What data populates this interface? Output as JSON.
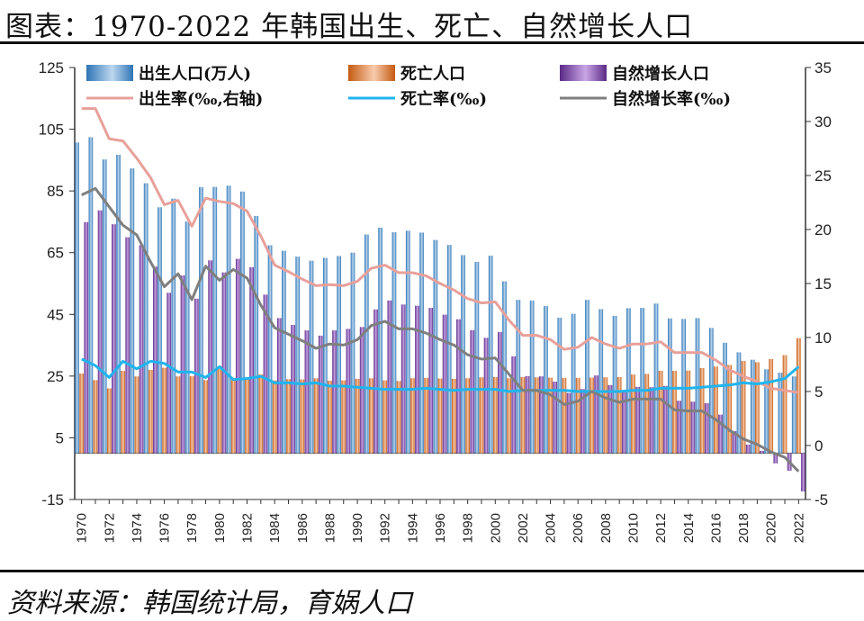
{
  "header": {
    "title": "图表：1970-2022 年韩国出生、死亡、自然增长人口"
  },
  "footer": {
    "source": "资料来源：韩国统计局，育娲人口"
  },
  "colors": {
    "births": "#5b9bd5",
    "deaths": "#ed7d31",
    "natural": "#7030a0",
    "birth_rate": "#e8a09a",
    "death_rate": "#1fb4ee",
    "natural_rate": "#7f7f7f"
  },
  "chart_data": {
    "type": "bar+line",
    "title": "1970-2022 年韩国出生、死亡、自然增长人口",
    "x_label": "",
    "years": [
      1970,
      1971,
      1972,
      1973,
      1974,
      1975,
      1976,
      1977,
      1978,
      1979,
      1980,
      1981,
      1982,
      1983,
      1984,
      1985,
      1986,
      1987,
      1988,
      1989,
      1990,
      1991,
      1992,
      1993,
      1994,
      1995,
      1996,
      1997,
      1998,
      1999,
      2000,
      2001,
      2002,
      2003,
      2004,
      2005,
      2006,
      2007,
      2008,
      2009,
      2010,
      2011,
      2012,
      2013,
      2014,
      2015,
      2016,
      2017,
      2018,
      2019,
      2020,
      2021,
      2022
    ],
    "x_tick_labels": [
      "1970",
      "1972",
      "1974",
      "1976",
      "1978",
      "1980",
      "1982",
      "1984",
      "1986",
      "1988",
      "1990",
      "1992",
      "1994",
      "1996",
      "1998",
      "2000",
      "2002",
      "2004",
      "2006",
      "2008",
      "2010",
      "2012",
      "2014",
      "2016",
      "2018",
      "2020",
      "2022"
    ],
    "left_axis": {
      "label": "万人",
      "min": -15,
      "max": 125,
      "ticks": [
        125,
        105,
        85,
        65,
        45,
        25,
        5,
        -15
      ]
    },
    "right_axis": {
      "label": "‰",
      "min": -5,
      "max": 35,
      "ticks": [
        35,
        30,
        25,
        20,
        15,
        10,
        5,
        0,
        -5
      ]
    },
    "bar_series": [
      {
        "name": "出生人口(万人)",
        "color_key": "births",
        "values": [
          100.7,
          102.4,
          95.2,
          96.7,
          92.3,
          87.5,
          79.7,
          82.5,
          75.1,
          86.2,
          86.3,
          86.7,
          84.8,
          76.9,
          67.4,
          65.6,
          63.7,
          62.4,
          63.3,
          63.9,
          65.0,
          70.9,
          73.1,
          71.6,
          72.1,
          71.5,
          69.1,
          67.5,
          64.2,
          62.0,
          64.0,
          55.7,
          49.7,
          49.5,
          47.7,
          43.9,
          45.2,
          49.7,
          46.7,
          44.5,
          47.0,
          47.1,
          48.5,
          43.7,
          43.5,
          43.8,
          40.6,
          35.8,
          32.7,
          30.3,
          27.2,
          26.1,
          24.9
        ]
      },
      {
        "name": "死亡人口",
        "color_key": "deaths",
        "values": [
          25.8,
          23.7,
          21.0,
          26.7,
          24.9,
          27.0,
          27.7,
          24.9,
          25.0,
          23.7,
          27.7,
          23.7,
          24.5,
          25.5,
          23.6,
          24.0,
          23.9,
          24.3,
          23.5,
          23.6,
          24.1,
          24.3,
          23.6,
          23.4,
          24.3,
          24.4,
          24.2,
          24.1,
          24.3,
          24.6,
          24.7,
          24.3,
          24.7,
          24.6,
          24.5,
          24.4,
          24.4,
          24.5,
          24.6,
          24.7,
          25.5,
          25.7,
          26.7,
          26.7,
          26.8,
          27.6,
          28.1,
          28.6,
          29.9,
          29.5,
          30.5,
          31.8,
          37.3
        ]
      },
      {
        "name": "自然增长人口",
        "color_key": "natural",
        "values": [
          74.9,
          78.7,
          74.2,
          70.0,
          67.4,
          60.5,
          52.0,
          57.6,
          50.1,
          62.5,
          58.6,
          63.0,
          60.3,
          51.4,
          43.8,
          41.6,
          39.8,
          38.1,
          39.8,
          40.3,
          40.9,
          46.6,
          49.5,
          48.2,
          47.8,
          47.1,
          44.9,
          43.4,
          39.9,
          37.4,
          39.3,
          31.4,
          25.0,
          24.9,
          23.2,
          19.5,
          20.8,
          25.2,
          22.1,
          19.8,
          21.5,
          21.4,
          21.8,
          17.0,
          16.7,
          16.2,
          12.5,
          7.2,
          2.8,
          0.8,
          -3.3,
          -5.7,
          -12.4
        ]
      }
    ],
    "line_series": [
      {
        "name": "出生率(‰,右轴)",
        "color_key": "birth_rate",
        "values": [
          31.2,
          31.2,
          28.4,
          28.2,
          26.6,
          24.8,
          22.3,
          22.7,
          20.3,
          22.9,
          22.6,
          22.4,
          21.7,
          19.4,
          16.7,
          16.1,
          15.4,
          14.8,
          14.9,
          14.8,
          15.2,
          16.4,
          16.7,
          16.0,
          16.0,
          15.7,
          15.0,
          14.4,
          13.6,
          13.2,
          13.3,
          11.6,
          10.2,
          10.2,
          9.8,
          8.9,
          9.1,
          10.0,
          9.4,
          9.0,
          9.4,
          9.4,
          9.6,
          8.6,
          8.6,
          8.6,
          7.9,
          7.0,
          6.4,
          5.9,
          5.3,
          5.1,
          4.9
        ]
      },
      {
        "name": "死亡率(‰)",
        "color_key": "death_rate",
        "values": [
          8.0,
          7.4,
          6.3,
          7.8,
          7.1,
          7.8,
          7.6,
          6.8,
          6.8,
          6.3,
          7.3,
          6.1,
          6.2,
          6.4,
          5.8,
          5.8,
          5.7,
          5.8,
          5.5,
          5.5,
          5.4,
          5.3,
          5.2,
          5.2,
          5.2,
          5.3,
          5.2,
          5.1,
          5.2,
          5.2,
          5.2,
          5.0,
          5.1,
          5.1,
          5.1,
          5.1,
          5.0,
          5.0,
          5.0,
          5.0,
          5.1,
          5.1,
          5.3,
          5.3,
          5.3,
          5.4,
          5.5,
          5.6,
          5.8,
          5.7,
          5.9,
          6.2,
          7.3
        ]
      },
      {
        "name": "自然增长率(‰)",
        "color_key": "natural_rate",
        "values": [
          23.2,
          23.8,
          22.1,
          20.4,
          19.5,
          17.0,
          14.7,
          15.9,
          13.5,
          16.6,
          15.3,
          16.3,
          15.5,
          13.0,
          10.9,
          10.3,
          9.7,
          9.0,
          9.4,
          9.3,
          9.8,
          11.1,
          11.5,
          10.8,
          10.8,
          10.4,
          9.8,
          9.3,
          8.4,
          8.0,
          8.1,
          6.6,
          5.1,
          5.1,
          4.7,
          3.8,
          4.1,
          5.0,
          4.4,
          4.0,
          4.3,
          4.3,
          4.3,
          3.3,
          3.2,
          3.2,
          2.4,
          1.4,
          0.6,
          0.1,
          -0.6,
          -1.1,
          -2.4
        ]
      }
    ]
  }
}
